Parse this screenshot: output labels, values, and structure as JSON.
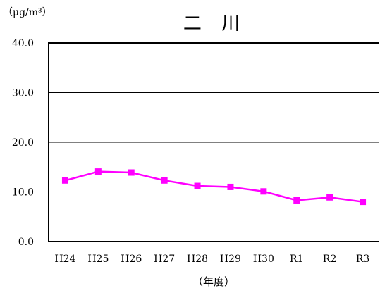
{
  "chart_data": {
    "type": "line",
    "title": "二 川",
    "unit_label": "（μg/m³）",
    "xlabel": "（年度）",
    "ylabel": "",
    "categories": [
      "H24",
      "H25",
      "H26",
      "H27",
      "H28",
      "H29",
      "H30",
      "R1",
      "R2",
      "R3"
    ],
    "ylim": [
      0,
      40
    ],
    "yticks": [
      "0.0",
      "10.0",
      "20.0",
      "30.0",
      "40.0"
    ],
    "grid": true,
    "series": [
      {
        "name": "",
        "values": [
          12.3,
          14.1,
          13.9,
          12.3,
          11.2,
          11.0,
          10.1,
          8.3,
          8.9,
          8.0
        ],
        "color": "#ff00ff"
      }
    ]
  }
}
